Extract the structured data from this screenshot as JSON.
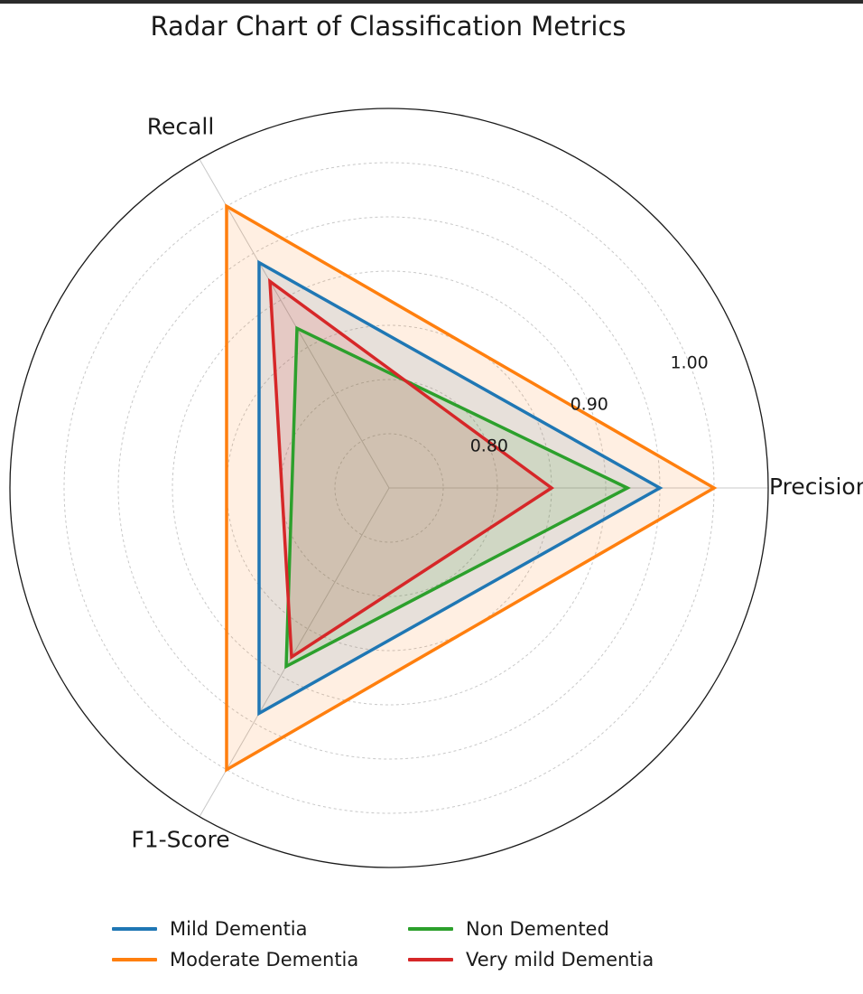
{
  "chart_data": {
    "type": "radar",
    "title": "Radar Chart of Classification Metrics",
    "axes": [
      "Precision",
      "Recall",
      "F1-Score"
    ],
    "radial_ticks": [
      "0.80",
      "0.90",
      "1.00"
    ],
    "radial_tick_values": [
      0.8,
      0.9,
      1.0
    ],
    "radial_gridline_values": [
      0.75,
      0.8,
      0.85,
      0.9,
      0.95,
      1.0
    ],
    "radial_range": [
      0.7,
      1.05
    ],
    "grid": true,
    "legend_position": "bottom",
    "series": [
      {
        "name": "Mild Dementia",
        "color": "#1f77b4",
        "values": [
          0.95,
          0.94,
          0.94
        ],
        "filled": true
      },
      {
        "name": "Moderate Dementia",
        "color": "#ff7f0e",
        "values": [
          1.0,
          1.0,
          1.0
        ],
        "filled": true
      },
      {
        "name": "Non Demented",
        "color": "#2ca02c",
        "values": [
          0.92,
          0.87,
          0.89
        ],
        "filled": true
      },
      {
        "name": "Very mild Dementia",
        "color": "#d62728",
        "values": [
          0.85,
          0.92,
          0.88
        ],
        "filled": true
      }
    ]
  }
}
